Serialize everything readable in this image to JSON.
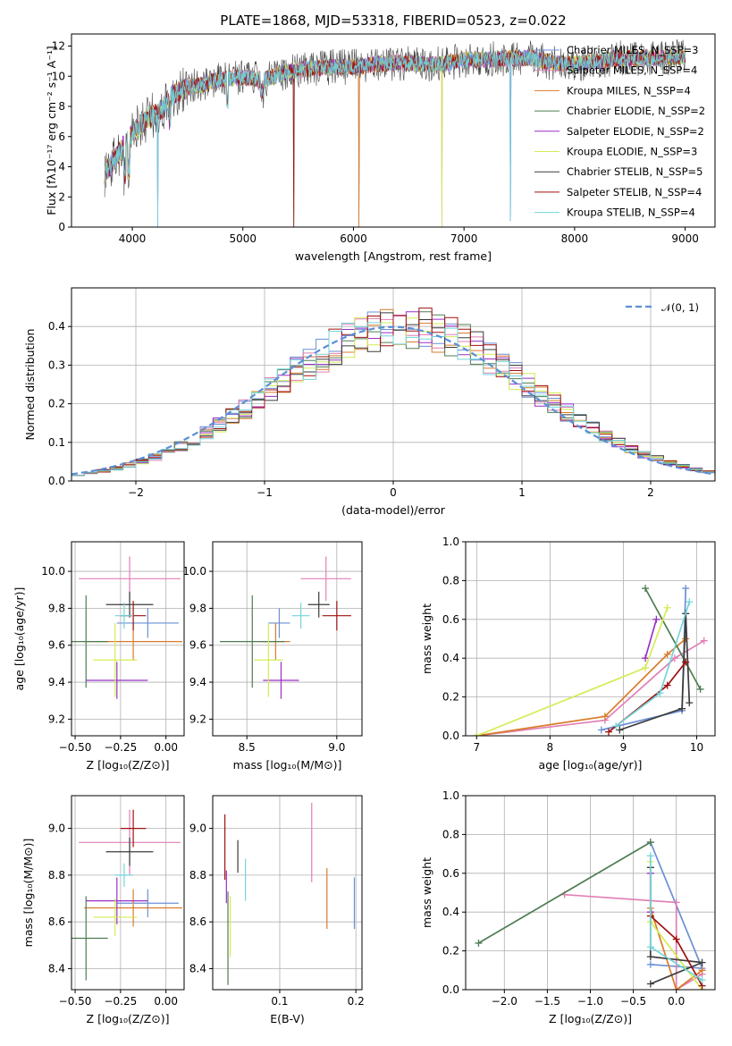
{
  "series_colors": [
    "#6b8fd6",
    "#e07fb5",
    "#d97b2a",
    "#4e7d52",
    "#9b2fc6",
    "#d4eb55",
    "#3b3b3b",
    "#a01010",
    "#73d4d8"
  ],
  "chart_data": [
    {
      "type": "line",
      "title": "PLATE=1868, MJD=53318, FIBERID=0523, z=0.022",
      "xlabel": "wavelength [Angstrom, rest frame]",
      "ylabel": "Flux [fλ10⁻¹⁷ erg cm⁻² s⁻¹ A⁻¹]",
      "xlim": [
        3450,
        9270
      ],
      "ylim": [
        0,
        12.8
      ],
      "xticks": [
        "4000",
        "5000",
        "6000",
        "7000",
        "8000",
        "9000"
      ],
      "yticks": [
        "0",
        "2",
        "4",
        "6",
        "8",
        "10",
        "12"
      ],
      "legend_position": "upper-right",
      "legend": [
        "Chabrier MILES, N_SSP=3",
        "Salpeter MILES, N_SSP=4",
        "Kroupa MILES, N_SSP=4",
        "Chabrier ELODIE, N_SSP=2",
        "Salpeter ELODIE, N_SSP=2",
        "Kroupa ELODIE, N_SSP=3",
        "Chabrier STELIB, N_SSP=5",
        "Salpeter STELIB, N_SSP=4",
        "Kroupa STELIB, N_SSP=4"
      ],
      "continuum": {
        "x": [
          3750,
          3850,
          3950,
          4050,
          4150,
          4250,
          4350,
          4450,
          4600,
          4800,
          5000,
          5200,
          5400,
          5600,
          5800,
          6000,
          6200,
          6400,
          6600,
          6800,
          7000,
          7200,
          7400,
          7600,
          7800,
          8000,
          8200,
          8400,
          8600,
          8800,
          9000
        ],
        "y": [
          3.5,
          4.6,
          5.7,
          6.6,
          7.3,
          7.6,
          8.7,
          9.1,
          9.4,
          9.8,
          9.9,
          9.8,
          10.3,
          10.5,
          10.6,
          10.6,
          10.8,
          10.9,
          10.8,
          10.8,
          11.1,
          11.1,
          11.2,
          11.2,
          10.9,
          10.8,
          11.0,
          11.2,
          11.2,
          11.2,
          11.3
        ]
      },
      "dips": [
        {
          "x": 4230,
          "y": 0.0
        },
        {
          "x": 5460,
          "y": 0.0
        },
        {
          "x": 6050,
          "y": 0.0
        },
        {
          "x": 6800,
          "y": 0.0
        },
        {
          "x": 7420,
          "y": 0.4
        }
      ]
    },
    {
      "type": "histogram",
      "xlabel": "(data-model)/error",
      "ylabel": "Normed distribution",
      "xlim": [
        -2.5,
        2.5
      ],
      "ylim": [
        0,
        0.5
      ],
      "xticks": [
        "−2",
        "−1",
        "0",
        "1",
        "2"
      ],
      "yticks": [
        "0.0",
        "0.1",
        "0.2",
        "0.3",
        "0.4"
      ],
      "legend": [
        "𝒩(0, 1)"
      ],
      "legend_position": "upper-right"
    },
    {
      "type": "errorbar",
      "xlabel": "Z [log₁₀(Z/Z⊙)]",
      "ylabel": "age  [log₁₀(age/yr)]",
      "xlim": [
        -0.52,
        0.1
      ],
      "ylim": [
        9.11,
        10.16
      ],
      "xticks": [
        "−0.50",
        "−0.25",
        "0.00"
      ],
      "yticks": [
        "9.2",
        "9.4",
        "9.6",
        "9.8",
        "10.0"
      ],
      "points": [
        {
          "x": -0.1,
          "y": 9.72,
          "xerr": 0.17,
          "yerr": 0.08
        },
        {
          "x": -0.2,
          "y": 9.96,
          "xerr": 0.28,
          "yerr": 0.12
        },
        {
          "x": -0.18,
          "y": 9.62,
          "xerr": 0.27,
          "yerr": 0.1
        },
        {
          "x": -0.44,
          "y": 9.62,
          "xerr": 0.12,
          "yerr": 0.25
        },
        {
          "x": -0.27,
          "y": 9.41,
          "xerr": 0.17,
          "yerr": 0.1
        },
        {
          "x": -0.28,
          "y": 9.52,
          "xerr": 0.12,
          "yerr": 0.2
        },
        {
          "x": -0.2,
          "y": 9.82,
          "xerr": 0.13,
          "yerr": 0.07
        },
        {
          "x": -0.18,
          "y": 9.76,
          "xerr": 0.07,
          "yerr": 0.08
        },
        {
          "x": -0.23,
          "y": 9.76,
          "xerr": 0.05,
          "yerr": 0.07
        }
      ]
    },
    {
      "type": "errorbar",
      "xlabel": "mass [log₁₀(M/M⊙)]",
      "xlim": [
        8.31,
        9.14
      ],
      "ylim": [
        9.11,
        10.16
      ],
      "xticks": [
        "8.5",
        "9.0"
      ],
      "yticks": [
        "9.2",
        "9.4",
        "9.6",
        "9.8",
        "10.0"
      ],
      "points": [
        {
          "x": 8.68,
          "y": 9.72,
          "xerr": 0.06,
          "yerr": 0.08
        },
        {
          "x": 8.94,
          "y": 9.96,
          "xerr": 0.14,
          "yerr": 0.12
        },
        {
          "x": 8.66,
          "y": 9.62,
          "xerr": 0.08,
          "yerr": 0.1
        },
        {
          "x": 8.53,
          "y": 9.62,
          "xerr": 0.18,
          "yerr": 0.25
        },
        {
          "x": 8.69,
          "y": 9.41,
          "xerr": 0.1,
          "yerr": 0.1
        },
        {
          "x": 8.62,
          "y": 9.52,
          "xerr": 0.08,
          "yerr": 0.2
        },
        {
          "x": 8.9,
          "y": 9.82,
          "xerr": 0.06,
          "yerr": 0.07
        },
        {
          "x": 9.0,
          "y": 9.76,
          "xerr": 0.08,
          "yerr": 0.08
        },
        {
          "x": 8.8,
          "y": 9.76,
          "xerr": 0.05,
          "yerr": 0.07
        }
      ]
    },
    {
      "type": "line",
      "xlabel": "age  [log₁₀(age/yr)]",
      "ylabel": "mass weight",
      "xlim": [
        6.85,
        10.25
      ],
      "ylim": [
        0,
        1.0
      ],
      "xticks": [
        "7",
        "8",
        "9",
        "10"
      ],
      "yticks": [
        "0.0",
        "0.2",
        "0.4",
        "0.6",
        "0.8",
        "1.0"
      ],
      "series": [
        {
          "points": [
            [
              8.7,
              0.03
            ],
            [
              9.8,
              0.13
            ],
            [
              9.85,
              0.76
            ]
          ]
        },
        {
          "points": [
            [
              7.0,
              0.0
            ],
            [
              8.75,
              0.08
            ],
            [
              9.7,
              0.4
            ],
            [
              10.1,
              0.49
            ]
          ]
        },
        {
          "points": [
            [
              7.0,
              0.0
            ],
            [
              8.75,
              0.1
            ],
            [
              9.6,
              0.42
            ],
            [
              9.85,
              0.5
            ]
          ]
        },
        {
          "points": [
            [
              9.3,
              0.76
            ],
            [
              10.05,
              0.24
            ]
          ]
        },
        {
          "points": [
            [
              9.3,
              0.4
            ],
            [
              9.45,
              0.6
            ]
          ]
        },
        {
          "points": [
            [
              7.0,
              0.0
            ],
            [
              9.3,
              0.35
            ],
            [
              9.6,
              0.66
            ]
          ]
        },
        {
          "points": [
            [
              8.95,
              0.03
            ],
            [
              9.8,
              0.14
            ],
            [
              9.85,
              0.63
            ],
            [
              9.9,
              0.17
            ]
          ]
        },
        {
          "points": [
            [
              8.8,
              0.02
            ],
            [
              9.6,
              0.26
            ],
            [
              9.85,
              0.38
            ]
          ]
        },
        {
          "points": [
            [
              8.9,
              0.05
            ],
            [
              9.5,
              0.22
            ],
            [
              9.9,
              0.69
            ]
          ]
        }
      ]
    },
    {
      "type": "errorbar",
      "xlabel": "Z [log₁₀(Z/Z⊙)]",
      "ylabel": "mass [log₁₀(M/M⊙)]",
      "xlim": [
        -0.52,
        0.1
      ],
      "ylim": [
        8.31,
        9.14
      ],
      "xticks": [
        "−0.50",
        "−0.25",
        "0.00"
      ],
      "yticks": [
        "8.4",
        "8.6",
        "8.8",
        "9.0"
      ],
      "points": [
        {
          "x": -0.1,
          "y": 8.68,
          "xerr": 0.17,
          "yerr": 0.06
        },
        {
          "x": -0.2,
          "y": 8.94,
          "xerr": 0.28,
          "yerr": 0.14
        },
        {
          "x": -0.18,
          "y": 8.66,
          "xerr": 0.27,
          "yerr": 0.08
        },
        {
          "x": -0.44,
          "y": 8.53,
          "xerr": 0.12,
          "yerr": 0.18
        },
        {
          "x": -0.27,
          "y": 8.69,
          "xerr": 0.17,
          "yerr": 0.1
        },
        {
          "x": -0.28,
          "y": 8.62,
          "xerr": 0.12,
          "yerr": 0.08
        },
        {
          "x": -0.2,
          "y": 8.9,
          "xerr": 0.13,
          "yerr": 0.06
        },
        {
          "x": -0.18,
          "y": 9.0,
          "xerr": 0.07,
          "yerr": 0.08
        },
        {
          "x": -0.23,
          "y": 8.8,
          "xerr": 0.05,
          "yerr": 0.05
        }
      ]
    },
    {
      "type": "errorbar",
      "xlabel": "E(B-V)",
      "xlim": [
        0.012,
        0.208
      ],
      "ylim": [
        8.31,
        9.14
      ],
      "xticks": [
        "0.1",
        "0.2"
      ],
      "yticks": [
        "8.4",
        "8.6",
        "8.8",
        "9.0"
      ],
      "points": [
        {
          "x": 0.198,
          "y": 8.68,
          "xerr": 0,
          "yerr": 0.11
        },
        {
          "x": 0.142,
          "y": 8.94,
          "xerr": 0,
          "yerr": 0.17
        },
        {
          "x": 0.162,
          "y": 8.7,
          "xerr": 0,
          "yerr": 0.13
        },
        {
          "x": 0.032,
          "y": 8.53,
          "xerr": 0,
          "yerr": 0.2
        },
        {
          "x": 0.03,
          "y": 8.75,
          "xerr": 0,
          "yerr": 0.07
        },
        {
          "x": 0.035,
          "y": 8.58,
          "xerr": 0,
          "yerr": 0.13
        },
        {
          "x": 0.045,
          "y": 8.88,
          "xerr": 0,
          "yerr": 0.07
        },
        {
          "x": 0.028,
          "y": 8.92,
          "xerr": 0,
          "yerr": 0.14
        },
        {
          "x": 0.055,
          "y": 8.78,
          "xerr": 0,
          "yerr": 0.09
        }
      ]
    },
    {
      "type": "line",
      "xlabel": "Z [log₁₀(Z/Z⊙)]",
      "ylabel": "mass weight",
      "xlim": [
        -2.45,
        0.45
      ],
      "ylim": [
        0,
        1.0
      ],
      "xticks": [
        "−2.0",
        "−1.5",
        "−1.0",
        "−0.5",
        "0.0"
      ],
      "yticks": [
        "0.0",
        "0.2",
        "0.4",
        "0.6",
        "0.8",
        "1.0"
      ],
      "series": [
        {
          "points": [
            [
              -0.3,
              0.13
            ],
            [
              0.3,
              0.11
            ],
            [
              -0.3,
              0.76
            ]
          ]
        },
        {
          "points": [
            [
              -1.3,
              0.49
            ],
            [
              0.0,
              0.45
            ],
            [
              0.0,
              0.0
            ],
            [
              0.3,
              0.08
            ]
          ]
        },
        {
          "points": [
            [
              -0.3,
              0.42
            ],
            [
              0.0,
              0.0
            ],
            [
              0.3,
              0.1
            ]
          ]
        },
        {
          "points": [
            [
              -2.3,
              0.24
            ],
            [
              -0.3,
              0.76
            ]
          ]
        },
        {
          "points": [
            [
              -0.3,
              0.6
            ],
            [
              -0.3,
              0.4
            ]
          ]
        },
        {
          "points": [
            [
              -0.3,
              0.66
            ],
            [
              -0.3,
              0.35
            ],
            [
              0.3,
              0.0
            ]
          ]
        },
        {
          "points": [
            [
              -0.3,
              0.63
            ],
            [
              -0.3,
              0.17
            ],
            [
              0.3,
              0.14
            ],
            [
              -0.3,
              0.03
            ]
          ]
        },
        {
          "points": [
            [
              -0.3,
              0.38
            ],
            [
              0.0,
              0.26
            ],
            [
              0.3,
              0.02
            ]
          ]
        },
        {
          "points": [
            [
              -0.3,
              0.69
            ],
            [
              -0.3,
              0.22
            ],
            [
              0.3,
              0.05
            ]
          ]
        }
      ]
    }
  ]
}
